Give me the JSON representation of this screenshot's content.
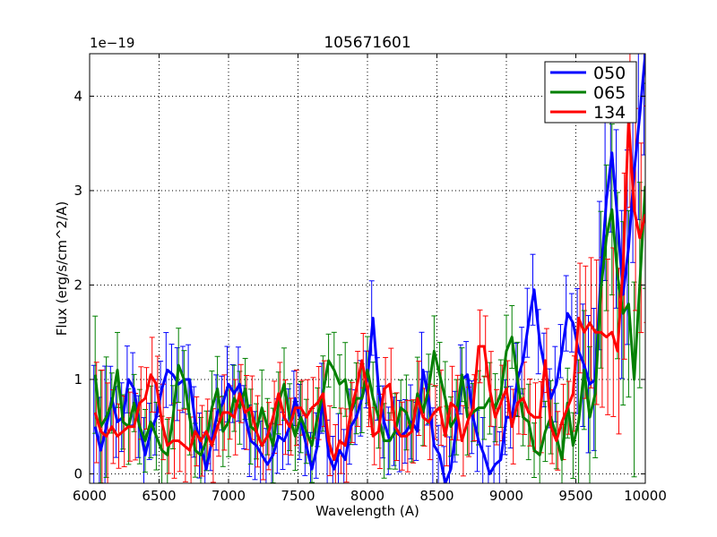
{
  "chart_data": {
    "type": "line",
    "title": "105671601",
    "xlabel": "Wavelength (A)",
    "ylabel": "Flux (erg/s/cm^2/A)",
    "offset_label": "1e−19",
    "xlim": [
      6000,
      10000
    ],
    "ylim": [
      -0.1,
      4.45
    ],
    "xticks": [
      6000,
      6500,
      7000,
      7500,
      8000,
      8500,
      9000,
      9500,
      10000
    ],
    "yticks": [
      0,
      1,
      2,
      3,
      4
    ],
    "grid": true,
    "legend_position": "top-right",
    "series": [
      {
        "name": "050",
        "color": "#0000ff",
        "x": [
          6040,
          6080,
          6120,
          6160,
          6200,
          6240,
          6280,
          6320,
          6360,
          6400,
          6440,
          6480,
          6520,
          6560,
          6600,
          6640,
          6680,
          6720,
          6760,
          6800,
          6840,
          6880,
          6920,
          6960,
          7000,
          7040,
          7080,
          7120,
          7160,
          7200,
          7240,
          7280,
          7320,
          7360,
          7400,
          7440,
          7480,
          7520,
          7560,
          7600,
          7640,
          7680,
          7720,
          7760,
          7800,
          7840,
          7880,
          7920,
          7960,
          8000,
          8040,
          8080,
          8120,
          8160,
          8200,
          8240,
          8280,
          8320,
          8360,
          8400,
          8440,
          8480,
          8520,
          8560,
          8600,
          8640,
          8680,
          8720,
          8760,
          8800,
          8840,
          8880,
          8920,
          8960,
          9000,
          9040,
          9080,
          9120,
          9160,
          9200,
          9240,
          9280,
          9320,
          9360,
          9400,
          9440,
          9480,
          9520,
          9560,
          9600,
          9640,
          9680,
          9720,
          9760,
          9800,
          9840,
          9880,
          9920,
          9960,
          10000
        ],
        "values": [
          0.5,
          0.25,
          0.5,
          0.8,
          0.55,
          0.6,
          1.0,
          0.9,
          0.5,
          0.2,
          0.45,
          0.6,
          0.9,
          1.1,
          1.05,
          0.95,
          1.0,
          1.0,
          0.55,
          0.3,
          0.05,
          0.35,
          0.65,
          0.75,
          0.95,
          0.85,
          0.95,
          0.6,
          0.35,
          0.3,
          0.2,
          0.1,
          0.2,
          0.4,
          0.35,
          0.5,
          0.8,
          0.55,
          0.3,
          0.05,
          0.3,
          0.8,
          0.2,
          0.05,
          0.25,
          0.15,
          0.5,
          0.6,
          0.8,
          1.0,
          1.65,
          0.9,
          0.55,
          0.35,
          0.45,
          0.4,
          0.45,
          0.55,
          0.45,
          1.1,
          0.8,
          0.3,
          0.2,
          -0.1,
          0.05,
          0.5,
          1.0,
          1.05,
          0.6,
          0.35,
          0.2,
          0.0,
          0.1,
          0.15,
          0.6,
          0.6,
          1.0,
          1.2,
          1.6,
          1.95,
          1.4,
          1.1,
          0.8,
          0.95,
          1.3,
          1.7,
          1.6,
          1.3,
          1.15,
          0.95,
          1.0,
          2.1,
          2.9,
          3.4,
          2.7,
          1.9,
          2.4,
          3.2,
          3.8,
          4.45
        ]
      },
      {
        "name": "065",
        "color": "#008000",
        "x": [
          6040,
          6080,
          6120,
          6160,
          6200,
          6240,
          6280,
          6320,
          6360,
          6400,
          6440,
          6480,
          6520,
          6560,
          6600,
          6640,
          6680,
          6720,
          6760,
          6800,
          6840,
          6880,
          6920,
          6960,
          7000,
          7040,
          7080,
          7120,
          7160,
          7200,
          7240,
          7280,
          7320,
          7360,
          7400,
          7440,
          7480,
          7520,
          7560,
          7600,
          7640,
          7680,
          7720,
          7760,
          7800,
          7840,
          7880,
          7920,
          7960,
          8000,
          8040,
          8080,
          8120,
          8160,
          8200,
          8240,
          8280,
          8320,
          8360,
          8400,
          8440,
          8480,
          8520,
          8560,
          8600,
          8640,
          8680,
          8720,
          8760,
          8800,
          8840,
          8880,
          8920,
          8960,
          9000,
          9040,
          9080,
          9120,
          9160,
          9200,
          9240,
          9280,
          9320,
          9360,
          9400,
          9440,
          9480,
          9520,
          9560,
          9600,
          9640,
          9680,
          9720,
          9760,
          9800,
          9840,
          9880,
          9920,
          9960,
          10000
        ],
        "values": [
          1.05,
          0.5,
          0.6,
          0.75,
          1.1,
          0.55,
          0.5,
          0.75,
          0.5,
          0.35,
          0.55,
          0.4,
          0.25,
          0.2,
          0.6,
          1.15,
          1.0,
          0.6,
          0.25,
          0.2,
          0.35,
          0.7,
          0.9,
          0.45,
          0.55,
          0.8,
          0.7,
          0.9,
          0.5,
          0.45,
          0.7,
          0.5,
          0.3,
          0.75,
          0.95,
          0.6,
          0.4,
          0.6,
          0.45,
          0.3,
          0.6,
          0.85,
          1.2,
          1.1,
          0.95,
          1.0,
          0.65,
          0.8,
          0.8,
          1.1,
          0.8,
          0.6,
          0.35,
          0.35,
          0.45,
          0.7,
          0.65,
          0.45,
          0.85,
          0.65,
          0.9,
          1.3,
          1.05,
          0.8,
          0.5,
          0.6,
          1.05,
          0.6,
          0.65,
          0.7,
          0.7,
          0.8,
          0.7,
          0.85,
          1.3,
          1.45,
          1.0,
          0.6,
          0.55,
          0.25,
          0.2,
          0.45,
          0.6,
          0.4,
          0.15,
          0.75,
          0.3,
          0.55,
          1.1,
          0.6,
          0.85,
          1.95,
          2.5,
          2.8,
          2.1,
          1.7,
          1.8,
          1.0,
          2.0,
          3.05
        ]
      },
      {
        "name": "134",
        "color": "#ff0000",
        "x": [
          6040,
          6080,
          6120,
          6160,
          6200,
          6240,
          6280,
          6320,
          6360,
          6400,
          6440,
          6480,
          6520,
          6560,
          6600,
          6640,
          6680,
          6720,
          6760,
          6800,
          6840,
          6880,
          6920,
          6960,
          7000,
          7040,
          7080,
          7120,
          7160,
          7200,
          7240,
          7280,
          7320,
          7360,
          7400,
          7440,
          7480,
          7520,
          7560,
          7600,
          7640,
          7680,
          7720,
          7760,
          7800,
          7840,
          7880,
          7920,
          7960,
          8000,
          8040,
          8080,
          8120,
          8160,
          8200,
          8240,
          8280,
          8320,
          8360,
          8400,
          8440,
          8480,
          8520,
          8560,
          8600,
          8640,
          8680,
          8720,
          8760,
          8800,
          8840,
          8880,
          8920,
          8960,
          9000,
          9040,
          9080,
          9120,
          9160,
          9200,
          9240,
          9280,
          9320,
          9360,
          9400,
          9440,
          9480,
          9520,
          9560,
          9600,
          9640,
          9680,
          9720,
          9760,
          9800,
          9840,
          9880,
          9920,
          9960,
          10000
        ],
        "values": [
          0.65,
          0.45,
          0.4,
          0.5,
          0.4,
          0.45,
          0.5,
          0.5,
          0.75,
          0.8,
          1.05,
          0.95,
          0.55,
          0.3,
          0.35,
          0.35,
          0.3,
          0.25,
          0.45,
          0.35,
          0.45,
          0.3,
          0.5,
          0.65,
          0.65,
          0.6,
          0.85,
          0.65,
          0.7,
          0.45,
          0.3,
          0.4,
          0.6,
          0.85,
          0.6,
          0.5,
          0.7,
          0.7,
          0.6,
          0.7,
          0.75,
          0.85,
          0.35,
          0.15,
          0.35,
          0.3,
          0.65,
          0.9,
          1.2,
          0.9,
          0.4,
          0.45,
          0.9,
          0.95,
          0.5,
          0.4,
          0.4,
          0.45,
          0.8,
          0.6,
          0.55,
          0.65,
          0.7,
          0.4,
          0.75,
          0.7,
          0.35,
          0.55,
          0.7,
          1.35,
          1.35,
          0.9,
          0.6,
          0.75,
          0.9,
          0.5,
          0.75,
          0.8,
          0.65,
          0.6,
          0.6,
          1.2,
          0.5,
          0.35,
          0.55,
          0.7,
          0.85,
          1.65,
          1.5,
          1.6,
          1.5,
          1.5,
          1.45,
          1.5,
          1.3,
          2.2,
          3.75,
          2.8,
          2.5,
          2.75
        ]
      }
    ]
  }
}
